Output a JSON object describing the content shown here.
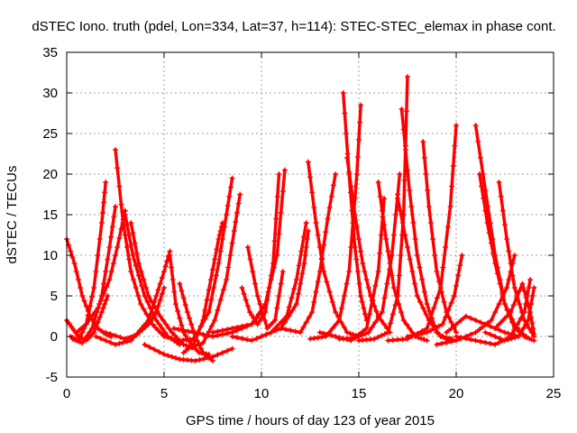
{
  "chart_data": {
    "type": "scatter",
    "title": "dSTEC Iono. truth (pdel, Lon=334, Lat=37, h=114): STEC-STEC_elemax in phase cont.",
    "xlabel": "GPS time / hours of day 123 of year 2015",
    "ylabel": "dSTEC  / TECUs",
    "xlim": [
      0,
      25
    ],
    "ylim": [
      -5,
      35
    ],
    "xticks": [
      0,
      5,
      10,
      15,
      20,
      25
    ],
    "yticks": [
      -5,
      0,
      5,
      10,
      15,
      20,
      25,
      30,
      35
    ],
    "grid": true,
    "marker": "+",
    "color": "#ff0000",
    "series": [
      {
        "x": [
          0.0,
          0.4,
          0.8,
          1.2,
          1.6,
          2.0,
          2.3
        ],
        "y": [
          12.0,
          9.0,
          5.0,
          2.5,
          1.0,
          0.3,
          0.0
        ]
      },
      {
        "x": [
          0.0,
          0.3,
          0.6,
          1.0,
          1.4,
          1.8,
          2.1
        ],
        "y": [
          2.0,
          1.0,
          0.0,
          -0.5,
          0.5,
          3.0,
          5.0
        ]
      },
      {
        "x": [
          0.2,
          0.6,
          1.0,
          1.4,
          1.8,
          2.0
        ],
        "y": [
          0.0,
          -0.5,
          1.5,
          6.0,
          14.0,
          19.0
        ]
      },
      {
        "x": [
          0.3,
          0.8,
          1.3,
          1.8,
          2.2,
          2.5
        ],
        "y": [
          -0.3,
          -0.8,
          1.0,
          5.0,
          11.0,
          16.0
        ]
      },
      {
        "x": [
          2.5,
          2.9,
          3.3,
          3.8,
          4.4,
          5.0,
          5.8,
          6.5
        ],
        "y": [
          23.0,
          14.0,
          8.0,
          4.0,
          1.5,
          0.0,
          -0.5,
          -0.3
        ]
      },
      {
        "x": [
          0.5,
          1.0,
          1.6,
          2.2,
          2.6,
          3.0
        ],
        "y": [
          0.5,
          1.5,
          3.5,
          7.0,
          11.0,
          15.5
        ]
      },
      {
        "x": [
          3.0,
          3.4,
          4.0,
          4.6,
          5.2,
          5.8
        ],
        "y": [
          15.0,
          10.0,
          5.0,
          2.0,
          0.0,
          -1.0
        ]
      },
      {
        "x": [
          3.3,
          3.7,
          4.2,
          4.8,
          5.4,
          6.0,
          6.6
        ],
        "y": [
          14.0,
          9.0,
          5.0,
          2.5,
          0.5,
          -1.0,
          -1.5
        ]
      },
      {
        "x": [
          1.5,
          2.5,
          3.3,
          4.2,
          4.6,
          5.0,
          5.3
        ],
        "y": [
          0.0,
          -1.0,
          -0.5,
          2.0,
          5.0,
          8.0,
          10.5
        ]
      },
      {
        "x": [
          2.0,
          3.0,
          3.6,
          4.2,
          4.6,
          5.0
        ],
        "y": [
          0.5,
          -0.3,
          0.2,
          1.5,
          3.0,
          6.0
        ]
      },
      {
        "x": [
          5.3,
          5.6,
          6.0,
          6.4,
          6.8,
          7.3
        ],
        "y": [
          10.0,
          4.0,
          0.5,
          -1.0,
          -2.0,
          -2.2
        ]
      },
      {
        "x": [
          4.0,
          5.0,
          5.8,
          6.6,
          7.5,
          8.5
        ],
        "y": [
          -1.0,
          -2.2,
          -2.8,
          -3.0,
          -2.5,
          -1.5
        ]
      },
      {
        "x": [
          5.8,
          6.2,
          6.6,
          7.0,
          7.5
        ],
        "y": [
          6.5,
          3.0,
          0.0,
          -2.0,
          -3.0
        ]
      },
      {
        "x": [
          6.0,
          6.5,
          7.0,
          7.4,
          7.8,
          8.0
        ],
        "y": [
          -2.0,
          -1.0,
          2.0,
          7.0,
          12.0,
          14.0
        ]
      },
      {
        "x": [
          6.5,
          7.3,
          7.8,
          8.2,
          8.5
        ],
        "y": [
          -0.5,
          3.0,
          9.0,
          15.0,
          19.5
        ]
      },
      {
        "x": [
          6.2,
          7.0,
          7.6,
          8.2,
          8.6,
          8.9
        ],
        "y": [
          -1.5,
          -0.8,
          2.0,
          7.0,
          13.0,
          17.5
        ]
      },
      {
        "x": [
          5.5,
          6.5,
          7.5,
          8.5,
          9.5,
          10.0
        ],
        "y": [
          1.0,
          0.5,
          0.0,
          0.5,
          1.5,
          3.0
        ]
      },
      {
        "x": [
          9.0,
          9.4,
          9.8,
          10.2,
          10.6,
          10.9
        ],
        "y": [
          6.0,
          3.0,
          1.5,
          3.0,
          9.0,
          20.0
        ]
      },
      {
        "x": [
          9.3,
          9.8,
          10.3,
          10.7,
          11.1
        ],
        "y": [
          11.0,
          5.0,
          1.0,
          2.0,
          8.0
        ]
      },
      {
        "x": [
          7.5,
          8.5,
          9.5,
          10.2,
          10.8,
          11.2
        ],
        "y": [
          0.5,
          1.0,
          1.5,
          4.0,
          10.0,
          20.5
        ]
      },
      {
        "x": [
          8.5,
          9.5,
          10.5,
          11.3,
          11.8,
          12.3
        ],
        "y": [
          0.0,
          -0.5,
          0.5,
          2.5,
          7.0,
          14.0
        ]
      },
      {
        "x": [
          10.0,
          11.0,
          11.8,
          12.2,
          12.4
        ],
        "y": [
          0.0,
          1.0,
          4.0,
          9.0,
          13.0
        ]
      },
      {
        "x": [
          11.0,
          12.0,
          12.6,
          13.0,
          13.4,
          13.8
        ],
        "y": [
          1.0,
          0.5,
          3.0,
          8.0,
          14.5,
          20.0
        ]
      },
      {
        "x": [
          12.4,
          12.8,
          13.2,
          13.8,
          14.4,
          15.0
        ],
        "y": [
          21.5,
          14.0,
          8.0,
          3.0,
          0.5,
          0.0
        ]
      },
      {
        "x": [
          14.2,
          14.5,
          14.8,
          15.1,
          15.4
        ],
        "y": [
          30.0,
          20.0,
          11.0,
          5.0,
          2.0
        ]
      },
      {
        "x": [
          14.4,
          14.8,
          15.2,
          15.6,
          16.0,
          16.6
        ],
        "y": [
          22.0,
          15.0,
          9.0,
          5.0,
          2.5,
          0.5
        ]
      },
      {
        "x": [
          12.5,
          13.3,
          14.0,
          14.5,
          14.9,
          15.1
        ],
        "y": [
          -0.3,
          0.0,
          2.0,
          8.0,
          20.0,
          28.5
        ]
      },
      {
        "x": [
          13.0,
          13.8,
          14.6,
          15.4,
          16.0,
          16.3
        ],
        "y": [
          0.5,
          0.0,
          -0.5,
          1.0,
          8.0,
          17.0
        ]
      },
      {
        "x": [
          14.0,
          14.8,
          15.5,
          16.2,
          16.7,
          17.1
        ],
        "y": [
          -0.3,
          -0.2,
          0.5,
          3.0,
          10.0,
          20.0
        ]
      },
      {
        "x": [
          15.0,
          15.8,
          16.5,
          17.0,
          17.3,
          17.5
        ],
        "y": [
          -0.5,
          -0.3,
          0.5,
          5.0,
          15.0,
          32.0
        ]
      },
      {
        "x": [
          17.2,
          17.6,
          18.0,
          18.5,
          19.0,
          19.6
        ],
        "y": [
          28.0,
          18.0,
          10.0,
          4.0,
          0.5,
          -0.5
        ]
      },
      {
        "x": [
          16.0,
          16.4,
          16.8,
          17.3,
          17.9,
          18.5
        ],
        "y": [
          19.0,
          12.0,
          6.0,
          2.0,
          0.0,
          -0.5
        ]
      },
      {
        "x": [
          17.0,
          17.5,
          18.0,
          18.6,
          19.2,
          19.8
        ],
        "y": [
          17.0,
          11.0,
          5.0,
          2.0,
          0.0,
          -0.3
        ]
      },
      {
        "x": [
          18.3,
          18.6,
          19.0,
          19.5,
          20.0
        ],
        "y": [
          24.0,
          16.0,
          8.0,
          3.0,
          0.5
        ]
      },
      {
        "x": [
          16.5,
          17.5,
          18.5,
          19.2,
          19.7,
          20.0
        ],
        "y": [
          -0.5,
          -0.3,
          1.0,
          6.0,
          16.0,
          26.0
        ]
      },
      {
        "x": [
          17.5,
          18.5,
          19.3,
          19.9,
          20.3
        ],
        "y": [
          0.0,
          0.5,
          1.5,
          5.0,
          10.0
        ]
      },
      {
        "x": [
          19.5,
          20.5,
          21.5,
          22.5,
          23.2
        ],
        "y": [
          0.5,
          2.5,
          1.5,
          0.5,
          0.0
        ]
      },
      {
        "x": [
          21.0,
          21.5,
          22.0,
          22.5,
          23.0,
          23.6
        ],
        "y": [
          26.0,
          18.0,
          10.0,
          4.0,
          1.0,
          0.0
        ]
      },
      {
        "x": [
          21.2,
          21.6,
          22.0,
          22.5,
          23.0,
          23.5,
          24.0
        ],
        "y": [
          20.0,
          14.0,
          9.0,
          4.0,
          1.5,
          0.0,
          -0.5
        ]
      },
      {
        "x": [
          22.2,
          22.6,
          23.0,
          23.5,
          24.0
        ],
        "y": [
          19.0,
          12.0,
          6.0,
          2.0,
          0.0
        ]
      },
      {
        "x": [
          19.0,
          20.0,
          21.0,
          21.8,
          22.6,
          23.0
        ],
        "y": [
          -1.0,
          -0.5,
          0.5,
          2.0,
          6.0,
          10.0
        ]
      },
      {
        "x": [
          20.0,
          21.0,
          22.0,
          22.8,
          23.5,
          23.8
        ],
        "y": [
          0.0,
          -0.5,
          -1.0,
          0.0,
          3.0,
          7.0
        ]
      },
      {
        "x": [
          21.5,
          22.5,
          23.2,
          23.7,
          24.0
        ],
        "y": [
          0.5,
          -0.5,
          0.0,
          2.0,
          6.0
        ]
      },
      {
        "x": [
          22.0,
          22.8,
          23.4,
          23.8,
          24.0
        ],
        "y": [
          1.0,
          3.0,
          6.5,
          3.0,
          0.3
        ]
      }
    ]
  }
}
